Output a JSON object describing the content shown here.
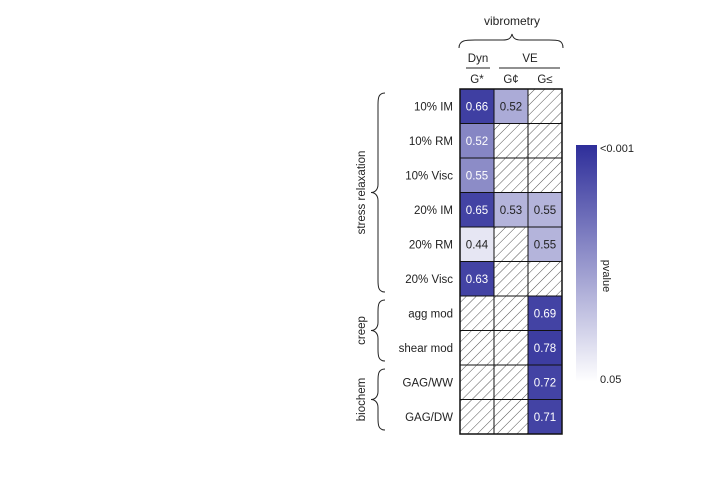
{
  "chart_data": {
    "type": "heatmap",
    "group_header": "vibrometry",
    "subgroups": [
      {
        "label": "Dyn",
        "columns": [
          0
        ]
      },
      {
        "label": "VE",
        "columns": [
          1,
          2
        ]
      }
    ],
    "columns": [
      "G*",
      "G¢",
      "G≤"
    ],
    "row_groups": [
      {
        "label": "stress relaxation",
        "rows": [
          0,
          1,
          2,
          3,
          4,
          5
        ]
      },
      {
        "label": "creep",
        "rows": [
          6,
          7
        ]
      },
      {
        "label": "biochem",
        "rows": [
          8,
          9
        ]
      }
    ],
    "rows": [
      "10% IM",
      "10% RM",
      "10% Visc",
      "20% IM",
      "20% RM",
      "20% Visc",
      "agg mod",
      "shear mod",
      "GAG/WW",
      "GAG/DW"
    ],
    "values": [
      [
        0.66,
        0.52,
        null
      ],
      [
        0.52,
        null,
        null
      ],
      [
        0.55,
        null,
        null
      ],
      [
        0.65,
        0.53,
        0.55
      ],
      [
        0.44,
        null,
        0.55
      ],
      [
        0.63,
        null,
        null
      ],
      [
        null,
        null,
        0.69
      ],
      [
        null,
        null,
        0.78
      ],
      [
        null,
        null,
        0.72
      ],
      [
        null,
        null,
        0.71
      ]
    ],
    "value_labels": [
      [
        "0.66",
        "0.52",
        null
      ],
      [
        "0.52",
        null,
        null
      ],
      [
        "0.55",
        null,
        null
      ],
      [
        "0.65",
        "0.53",
        "0.55"
      ],
      [
        "0.44",
        null,
        "0.55"
      ],
      [
        "0.63",
        null,
        null
      ],
      [
        null,
        null,
        "0.69"
      ],
      [
        null,
        null,
        "0.78"
      ],
      [
        null,
        null,
        "0.72"
      ],
      [
        null,
        null,
        "0.71"
      ]
    ],
    "cell_shade": [
      [
        0.92,
        0.4,
        null
      ],
      [
        0.58,
        null,
        null
      ],
      [
        0.55,
        null,
        null
      ],
      [
        0.9,
        0.36,
        0.36
      ],
      [
        0.12,
        null,
        0.36
      ],
      [
        0.9,
        null,
        null
      ],
      [
        null,
        null,
        0.9
      ],
      [
        null,
        null,
        0.93
      ],
      [
        null,
        null,
        0.9
      ],
      [
        null,
        null,
        0.9
      ]
    ],
    "hatched_meaning": "not significant",
    "colorbar": {
      "label": "pvalue",
      "top_label": "<0.001",
      "bottom_label": "0.05",
      "color_high": "#2e2e9a",
      "color_low": "#ffffff"
    }
  }
}
